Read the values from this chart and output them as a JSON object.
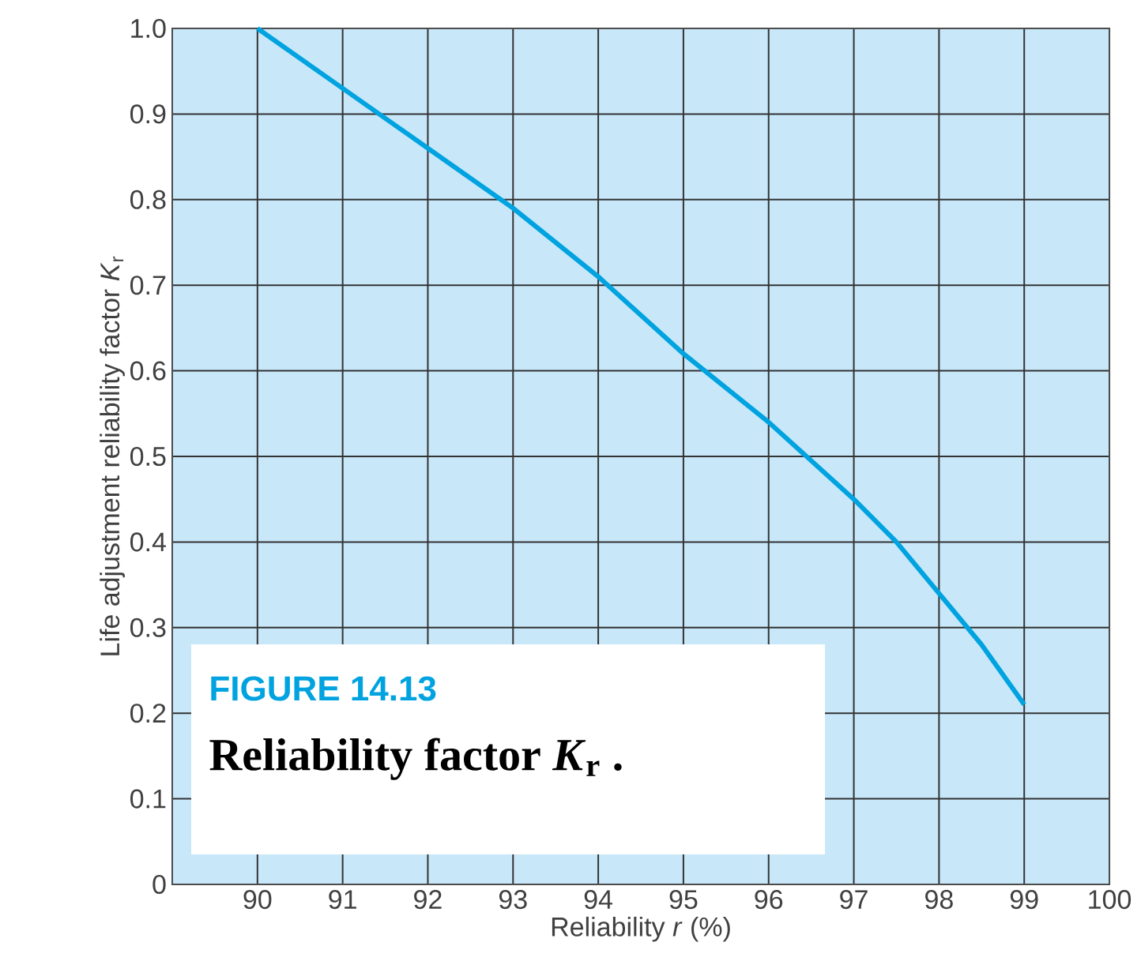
{
  "chart_data": {
    "type": "line",
    "xlabel": "Reliability *r* (%)",
    "ylabel": "Life adjustment reliability factor *K*$_{r}$",
    "x": [
      90,
      91,
      92,
      93,
      94,
      95,
      96,
      97,
      97.5,
      98,
      98.5,
      99
    ],
    "series": [
      {
        "color": "#00a3e0",
        "values": [
          1.0,
          0.93,
          0.86,
          0.79,
          0.71,
          0.62,
          0.54,
          0.45,
          0.4,
          0.34,
          0.28,
          0.21
        ]
      }
    ],
    "xlim": [
      89,
      100
    ],
    "ylim": [
      0,
      1
    ],
    "xticks": [
      90,
      91,
      92,
      93,
      94,
      95,
      96,
      97,
      98,
      99,
      100
    ],
    "yticks": [
      0,
      0.1,
      0.2,
      0.3,
      0.4,
      0.5,
      0.6,
      0.7,
      0.8,
      0.9,
      {
        "value": 1,
        "label": "1.0"
      }
    ],
    "grid": true,
    "marker": "none",
    "line_style": "solid",
    "annotations": [
      "FIGURE 14.13",
      "**Reliability factor *K*$_{r}$ .**"
    ]
  }
}
